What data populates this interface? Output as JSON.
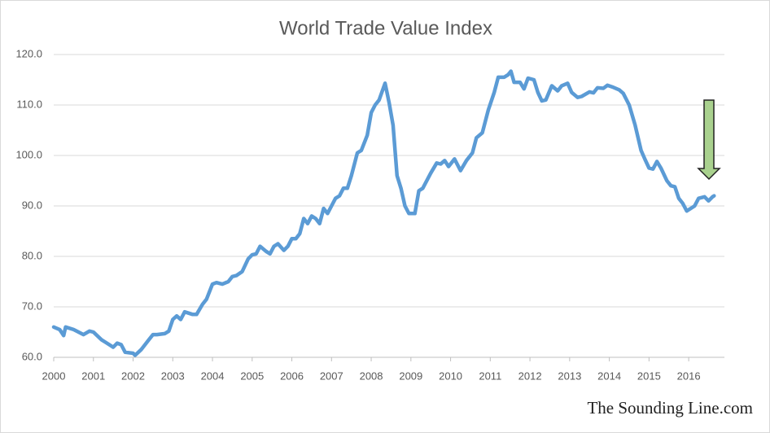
{
  "chart_data": {
    "type": "line",
    "title": "World Trade Value Index",
    "annotation": "The Sounding Line.com",
    "x": [
      2000.0,
      2000.15,
      2000.25,
      2000.3,
      2000.5,
      2000.75,
      2000.9,
      2001.0,
      2001.2,
      2001.4,
      2001.5,
      2001.6,
      2001.7,
      2001.8,
      2002.0,
      2002.05,
      2002.2,
      2002.4,
      2002.5,
      2002.6,
      2002.8,
      2002.9,
      2003.0,
      2003.1,
      2003.2,
      2003.3,
      2003.5,
      2003.6,
      2003.75,
      2003.85,
      2004.0,
      2004.1,
      2004.25,
      2004.4,
      2004.5,
      2004.6,
      2004.75,
      2004.9,
      2005.0,
      2005.1,
      2005.2,
      2005.35,
      2005.45,
      2005.55,
      2005.65,
      2005.8,
      2005.9,
      2006.0,
      2006.1,
      2006.2,
      2006.3,
      2006.4,
      2006.5,
      2006.6,
      2006.7,
      2006.8,
      2006.9,
      2007.0,
      2007.1,
      2007.2,
      2007.3,
      2007.4,
      2007.5,
      2007.65,
      2007.75,
      2007.9,
      2008.0,
      2008.1,
      2008.2,
      2008.35,
      2008.45,
      2008.55,
      2008.65,
      2008.75,
      2008.85,
      2008.95,
      2009.1,
      2009.2,
      2009.3,
      2009.5,
      2009.65,
      2009.75,
      2009.85,
      2009.95,
      2010.1,
      2010.25,
      2010.4,
      2010.55,
      2010.65,
      2010.8,
      2010.95,
      2011.1,
      2011.2,
      2011.35,
      2011.45,
      2011.52,
      2011.6,
      2011.75,
      2011.85,
      2011.95,
      2012.1,
      2012.2,
      2012.3,
      2012.4,
      2012.55,
      2012.7,
      2012.8,
      2012.95,
      2013.05,
      2013.2,
      2013.3,
      2013.5,
      2013.6,
      2013.7,
      2013.85,
      2013.95,
      2014.1,
      2014.25,
      2014.35,
      2014.5,
      2014.65,
      2014.8,
      2014.9,
      2015.0,
      2015.1,
      2015.2,
      2015.3,
      2015.45,
      2015.55,
      2015.65,
      2015.75,
      2015.85,
      2015.95,
      2016.05,
      2016.15,
      2016.25,
      2016.4,
      2016.5,
      2016.6,
      2016.64
    ],
    "series": [
      {
        "name": "World Trade Value Index",
        "color": "#5b9bd5",
        "values": [
          66,
          65.5,
          64.3,
          66,
          65.5,
          64.5,
          65.2,
          65,
          63.5,
          62.5,
          62,
          62.8,
          62.5,
          61,
          60.8,
          60.4,
          61.5,
          63.5,
          64.5,
          64.5,
          64.7,
          65.2,
          67.5,
          68.2,
          67.5,
          69,
          68.5,
          68.5,
          70.5,
          71.5,
          74.5,
          74.8,
          74.5,
          75,
          76,
          76.2,
          77,
          79.5,
          80.3,
          80.5,
          82,
          81,
          80.5,
          82,
          82.5,
          81.2,
          82,
          83.5,
          83.5,
          84.5,
          87.5,
          86.5,
          88,
          87.5,
          86.5,
          89.5,
          88.5,
          90,
          91.5,
          92,
          93.5,
          93.5,
          96,
          100.5,
          101,
          104,
          108.5,
          110,
          111,
          114.3,
          110.5,
          106,
          96,
          93.5,
          90,
          88.5,
          88.5,
          93,
          93.5,
          96.5,
          98.5,
          98.3,
          99,
          97.8,
          99.3,
          97,
          99,
          100.5,
          103.5,
          104.5,
          109,
          112.5,
          115.5,
          115.5,
          116,
          116.7,
          114.5,
          114.5,
          113.2,
          115.3,
          115,
          112.5,
          110.8,
          111,
          113.8,
          112.8,
          113.8,
          114.3,
          112.5,
          111.5,
          111.7,
          112.6,
          112.4,
          113.4,
          113.3,
          113.9,
          113.5,
          113,
          112.3,
          110,
          106,
          101,
          99.2,
          97.5,
          97.3,
          98.8,
          97.5,
          95,
          94,
          93.8,
          91.5,
          90.5,
          89,
          89.5,
          90,
          91.5,
          91.8,
          91,
          91.8,
          92
        ]
      }
    ],
    "xlim": [
      2000,
      2016.9
    ],
    "xticks": [
      2000,
      2001,
      2002,
      2003,
      2004,
      2005,
      2006,
      2007,
      2008,
      2009,
      2010,
      2011,
      2012,
      2013,
      2014,
      2015,
      2016
    ],
    "ylim": [
      60,
      120
    ],
    "yticks": [
      {
        "value": 60,
        "label": "60.0"
      },
      {
        "value": 70,
        "label": "70.0"
      },
      {
        "value": 80,
        "label": "80.0"
      },
      {
        "value": 90,
        "label": "90.0"
      },
      {
        "value": 100,
        "label": "100.0"
      },
      {
        "value": 110,
        "label": "110.0"
      },
      {
        "value": 120,
        "label": "120.0"
      }
    ],
    "grid": true
  }
}
